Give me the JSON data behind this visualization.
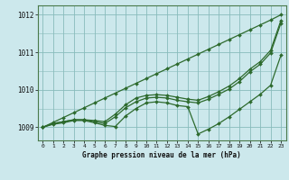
{
  "x": [
    0,
    1,
    2,
    3,
    4,
    5,
    6,
    7,
    8,
    9,
    10,
    11,
    12,
    13,
    14,
    15,
    16,
    17,
    18,
    19,
    20,
    21,
    22,
    23
  ],
  "line_top": [
    1009.0,
    1009.13,
    1009.26,
    1009.39,
    1009.52,
    1009.65,
    1009.78,
    1009.91,
    1010.04,
    1010.17,
    1010.3,
    1010.43,
    1010.56,
    1010.69,
    1010.82,
    1010.95,
    1011.08,
    1011.21,
    1011.34,
    1011.47,
    1011.6,
    1011.73,
    1011.86,
    1012.0
  ],
  "line_mid_high": [
    1009.0,
    1009.1,
    1009.15,
    1009.2,
    1009.2,
    1009.18,
    1009.15,
    1009.35,
    1009.6,
    1009.78,
    1009.85,
    1009.87,
    1009.85,
    1009.8,
    1009.75,
    1009.72,
    1009.82,
    1009.95,
    1010.1,
    1010.3,
    1010.55,
    1010.75,
    1011.05,
    1011.85
  ],
  "line_mid_low": [
    1009.0,
    1009.1,
    1009.15,
    1009.2,
    1009.2,
    1009.15,
    1009.1,
    1009.28,
    1009.52,
    1009.68,
    1009.78,
    1009.8,
    1009.78,
    1009.72,
    1009.68,
    1009.65,
    1009.75,
    1009.88,
    1010.02,
    1010.22,
    1010.48,
    1010.68,
    1010.98,
    1011.78
  ],
  "line_dip": [
    1009.0,
    1009.08,
    1009.12,
    1009.18,
    1009.18,
    1009.12,
    1009.05,
    1009.02,
    1009.3,
    1009.5,
    1009.65,
    1009.68,
    1009.65,
    1009.58,
    1009.55,
    1008.82,
    1008.95,
    1009.1,
    1009.28,
    1009.48,
    1009.68,
    1009.88,
    1010.12,
    1010.92
  ],
  "line_color": "#2d6a2d",
  "bg_color": "#cce8ec",
  "grid_color": "#88bbbb",
  "title": "Graphe pression niveau de la mer (hPa)",
  "ylim": [
    1008.65,
    1012.25
  ],
  "yticks": [
    1009,
    1010,
    1011,
    1012
  ],
  "xticks": [
    0,
    1,
    2,
    3,
    4,
    5,
    6,
    7,
    8,
    9,
    10,
    11,
    12,
    13,
    14,
    15,
    16,
    17,
    18,
    19,
    20,
    21,
    22,
    23
  ]
}
